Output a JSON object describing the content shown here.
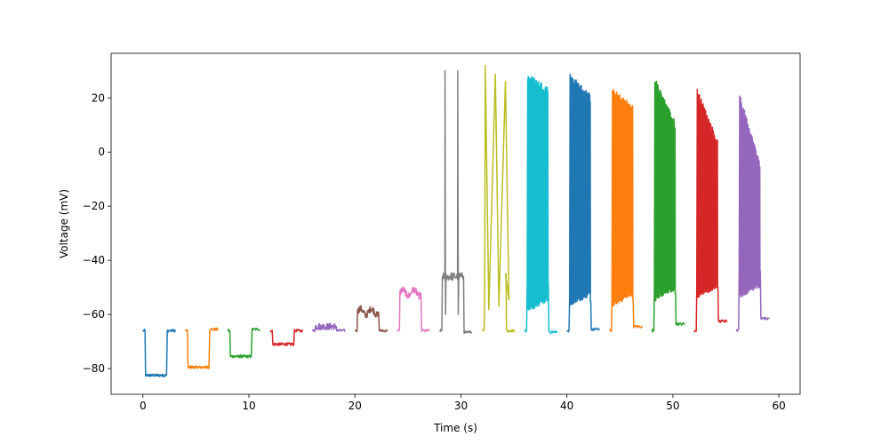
{
  "chart_data": {
    "type": "line",
    "title": "",
    "xlabel": "Time (s)",
    "ylabel": "Voltage (mV)",
    "xlim": [
      -3,
      62
    ],
    "ylim": [
      -89.5,
      36.5
    ],
    "xticks": [
      0,
      10,
      20,
      30,
      40,
      50,
      60
    ],
    "yticks": [
      -80,
      -60,
      -40,
      -20,
      0,
      20
    ],
    "xtick_labels": [
      "0",
      "10",
      "20",
      "30",
      "40",
      "50",
      "60"
    ],
    "ytick_labels": [
      "−80",
      "−60",
      "−40",
      "−20",
      "0",
      "20"
    ],
    "grid": false,
    "legend": false,
    "colors": [
      "#1f77b4",
      "#ff7f0e",
      "#2ca02c",
      "#d62728",
      "#9467bd",
      "#8c564b",
      "#e377c2",
      "#7f7f7f",
      "#bcbd22",
      "#17becf"
    ],
    "sweeps": [
      {
        "start": 0,
        "rest": -66,
        "step": -82.5,
        "peak": null,
        "trough": null,
        "spike_top_end": null,
        "after": -66
      },
      {
        "start": 4,
        "rest": -66,
        "step": -79.5,
        "peak": null,
        "trough": null,
        "spike_top_end": null,
        "after": -65.5
      },
      {
        "start": 8,
        "rest": -66,
        "step": -75.5,
        "peak": null,
        "trough": null,
        "spike_top_end": null,
        "after": -65.5
      },
      {
        "start": 12,
        "rest": -66,
        "step": -71,
        "peak": null,
        "trough": null,
        "spike_top_end": null,
        "after": -66
      },
      {
        "start": 16,
        "rest": -66,
        "step": -64.5,
        "peak": null,
        "trough": null,
        "spike_top_end": null,
        "after": -66
      },
      {
        "start": 20,
        "rest": -66,
        "step": -59,
        "peak": null,
        "trough": null,
        "spike_top_end": null,
        "after": -66
      },
      {
        "start": 24,
        "rest": -66,
        "step": -52,
        "peak": null,
        "trough": null,
        "spike_top_end": null,
        "after": -66
      },
      {
        "start": 28,
        "rest": -66,
        "step": -46,
        "peak": 30,
        "trough": -60,
        "spike_top_end": 30,
        "after": -66.5
      },
      {
        "start": 32,
        "rest": -66,
        "step": -45,
        "peak": 31,
        "trough": -59,
        "spike_top_end": 25,
        "after": -66
      },
      {
        "start": 36,
        "rest": -66,
        "step": -48,
        "peak": 27.5,
        "trough": -58,
        "spike_top_end": 23,
        "after": -66.5
      },
      {
        "start": 40,
        "rest": -66,
        "step": -55,
        "peak": 27.5,
        "trough": -56,
        "spike_top_end": 20,
        "after": -65.5
      },
      {
        "start": 44,
        "rest": -66,
        "step": -54,
        "peak": 22,
        "trough": -56,
        "spike_top_end": 16,
        "after": -64.5
      },
      {
        "start": 48,
        "rest": -66,
        "step": -52,
        "peak": 26,
        "trough": -54,
        "spike_top_end": 10,
        "after": -63.5
      },
      {
        "start": 52,
        "rest": -66,
        "step": -50,
        "peak": 22,
        "trough": -53,
        "spike_top_end": 3,
        "after": -62.5
      },
      {
        "start": 56,
        "rest": -66,
        "step": -44,
        "peak": 20,
        "trough": -53,
        "spike_top_end": -5,
        "after": -61.5
      }
    ]
  }
}
